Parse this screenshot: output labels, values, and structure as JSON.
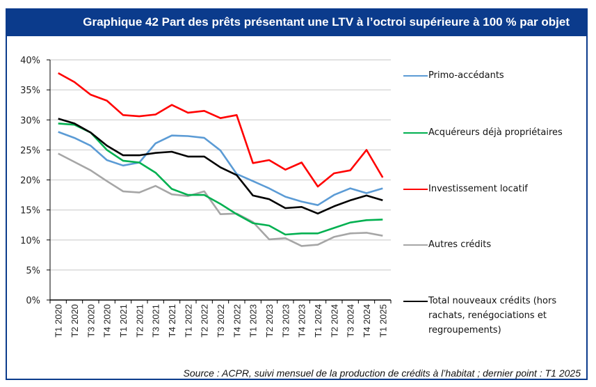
{
  "title": "Graphique 42 Part des prêts présentant une LTV à l’octroi supérieure à 100 % par objet",
  "source": "Source : ACPR, suivi mensuel de la production de crédits à l’habitat ; dernier point : T1 2025",
  "chart_data": {
    "type": "line",
    "title": "Graphique 42 Part des prêts présentant une LTV à l’octroi supérieure à 100 % par objet",
    "xlabel": "",
    "ylabel": "",
    "ylim": [
      0,
      40
    ],
    "yticks": [
      "0%",
      "5%",
      "10%",
      "15%",
      "20%",
      "25%",
      "30%",
      "35%",
      "40%"
    ],
    "ytick_values": [
      0,
      5,
      10,
      15,
      20,
      25,
      30,
      35,
      40
    ],
    "grid": true,
    "legend_position": "right",
    "categories": [
      "T1 2020",
      "T2 2020",
      "T3 2020",
      "T4 2020",
      "T1 2021",
      "T2 2021",
      "T3 2021",
      "T4 2021",
      "T1 2022",
      "T2 2022",
      "T3 2022",
      "T4 2022",
      "T1 2023",
      "T2 2023",
      "T3 2023",
      "T4 2023",
      "T1 2024",
      "T2 2024",
      "T3 2024",
      "T4 2024",
      "T1 2025"
    ],
    "series": [
      {
        "name": "Primo-accédants",
        "color": "#5b9bd5",
        "values": [
          28.0,
          27.0,
          25.7,
          23.3,
          22.4,
          22.9,
          26.1,
          27.4,
          27.3,
          27.0,
          24.9,
          21.0,
          19.8,
          18.6,
          17.2,
          16.4,
          15.8,
          17.5,
          18.6,
          17.8,
          18.6
        ]
      },
      {
        "name": "Acquéreurs déjà propriétaires",
        "color": "#00b050",
        "values": [
          29.4,
          29.2,
          27.9,
          25.0,
          23.2,
          22.9,
          21.2,
          18.5,
          17.5,
          17.5,
          16.0,
          14.3,
          12.8,
          12.4,
          10.9,
          11.1,
          11.1,
          12.0,
          12.9,
          13.3,
          13.4
        ]
      },
      {
        "name": "Investissement locatif",
        "color": "#ff0000",
        "values": [
          37.8,
          36.3,
          34.2,
          33.2,
          30.8,
          30.6,
          30.9,
          32.5,
          31.2,
          31.5,
          30.3,
          30.8,
          22.8,
          23.3,
          21.7,
          22.9,
          18.9,
          21.1,
          21.6,
          25.0,
          20.4
        ]
      },
      {
        "name": "Autres crédits",
        "color": "#a6a6a6",
        "values": [
          24.4,
          23.0,
          21.6,
          19.8,
          18.1,
          17.9,
          19.0,
          17.6,
          17.3,
          18.1,
          14.3,
          14.4,
          13.0,
          10.1,
          10.3,
          9.0,
          9.2,
          10.5,
          11.1,
          11.2,
          10.7
        ]
      },
      {
        "name": "Total nouveaux crédits (hors rachats, renégociations et regroupements)",
        "color": "#000000",
        "values": [
          30.2,
          29.4,
          27.9,
          25.7,
          24.1,
          24.1,
          24.5,
          24.7,
          23.9,
          23.9,
          22.1,
          20.8,
          17.4,
          16.8,
          15.3,
          15.5,
          14.4,
          15.6,
          16.6,
          17.4,
          16.6
        ]
      }
    ]
  },
  "legend": [
    {
      "label_lines": [
        "Primo-accédants"
      ]
    },
    {
      "label_lines": [
        "Acquéreurs déjà propriétaires"
      ]
    },
    {
      "label_lines": [
        "Investissement locatif"
      ]
    },
    {
      "label_lines": [
        "Autres crédits"
      ]
    },
    {
      "label_lines": [
        "Total nouveaux crédits (hors",
        "rachats, renégociations et",
        "regroupements)"
      ]
    }
  ]
}
